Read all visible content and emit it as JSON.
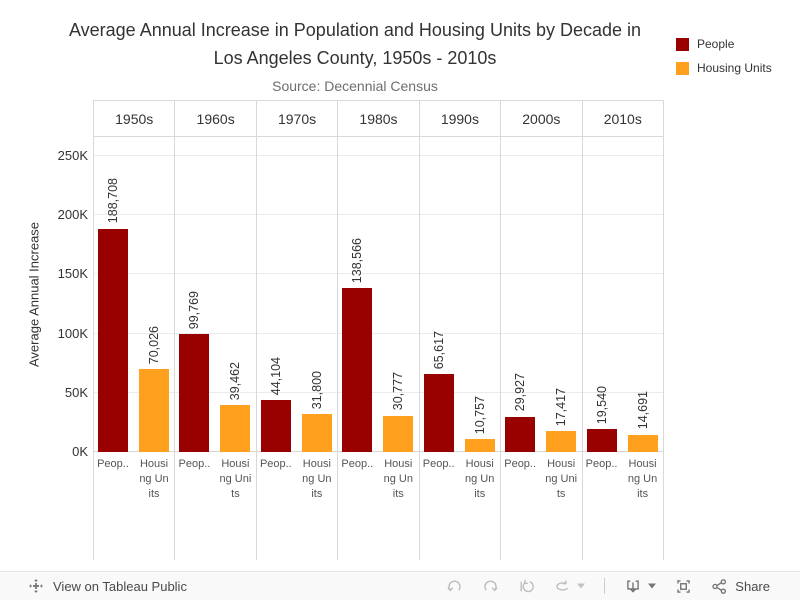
{
  "title": {
    "line1": "Average Annual Increase in Population and Housing Units by Decade in",
    "line2": "Los Angeles County, 1950s - 2010s",
    "subtitle": "Source: Decennial Census"
  },
  "legend": {
    "items": [
      {
        "label": "People",
        "color": "#990000"
      },
      {
        "label": "Housing Units",
        "color": "#FFA01E"
      }
    ]
  },
  "y_axis": {
    "label": "Average Annual Increase",
    "ticks": [
      "0K",
      "50K",
      "100K",
      "150K",
      "200K",
      "250K"
    ],
    "tick_step": 50000
  },
  "x_axis": {
    "people_label": "Peop..",
    "housing_label_lines": [
      [
        "Housi",
        "ng Un",
        "its"
      ],
      [
        "Housi",
        "ng Uni",
        "ts"
      ],
      [
        "Housi",
        "ng Un",
        "its"
      ],
      [
        "Housi",
        "ng Un",
        "its"
      ],
      [
        "Housi",
        "ng Un",
        "its"
      ],
      [
        "Housi",
        "ng Uni",
        "ts"
      ],
      [
        "Housi",
        "ng Un",
        "its"
      ]
    ]
  },
  "chart_data": {
    "type": "bar",
    "title": "Average Annual Increase in Population and Housing Units by Decade in Los Angeles County, 1950s - 2010s",
    "subtitle": "Source: Decennial Census",
    "categories": [
      "1950s",
      "1960s",
      "1970s",
      "1980s",
      "1990s",
      "2000s",
      "2010s"
    ],
    "series": [
      {
        "name": "People",
        "color": "#990000",
        "values": [
          188708,
          99769,
          44104,
          138566,
          65617,
          29927,
          19540
        ],
        "labels": [
          "188,708",
          "99,769",
          "44,104",
          "138,566",
          "65,617",
          "29,927",
          "19,540"
        ]
      },
      {
        "name": "Housing Units",
        "color": "#FFA01E",
        "values": [
          70026,
          39462,
          31800,
          30777,
          10757,
          17417,
          14691
        ],
        "labels": [
          "70,026",
          "39,462",
          "31,800",
          "30,777",
          "10,757",
          "17,417",
          "14,691"
        ]
      }
    ],
    "xlabel": "",
    "ylabel": "Average Annual Increase",
    "ylim": [
      0,
      250000
    ],
    "grid": true,
    "legend_position": "top-right",
    "value_labels": true
  },
  "toolbar": {
    "view_label": "View on Tableau Public",
    "share_label": "Share",
    "icons": [
      "tableau-logo",
      "undo",
      "redo",
      "reset",
      "refresh",
      "caret-down",
      "download",
      "caret-down",
      "fullscreen",
      "share"
    ]
  },
  "colors": {
    "people": "#990000",
    "housing": "#FFA01E",
    "grid": "#ebebeb",
    "border": "#d9d9d9",
    "toolbar_bg": "#f9f9f9",
    "icon_disabled": "#bdbdbd",
    "icon_active": "#757575"
  }
}
